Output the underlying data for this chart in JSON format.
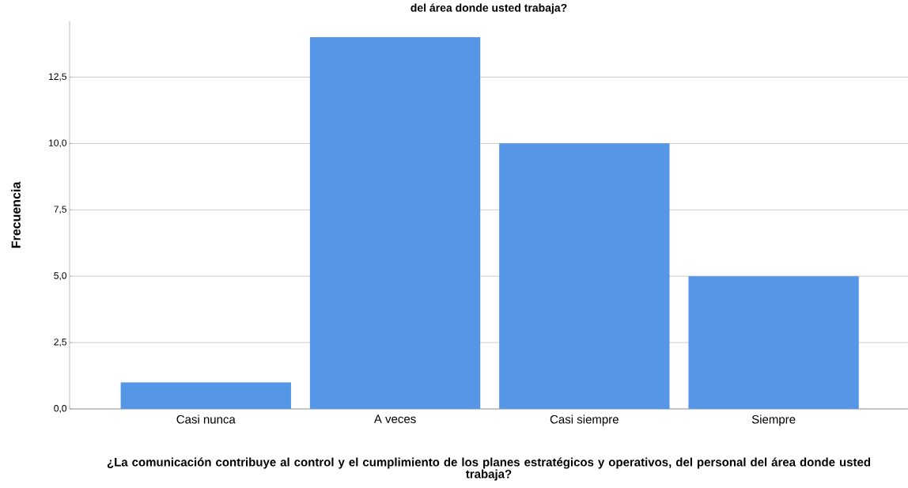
{
  "chart_data": {
    "type": "bar",
    "title": "del área donde usted trabaja?",
    "xlabel": "¿La comunicación contribuye al control y el cumplimiento de los planes estratégicos y operativos, del personal del área donde usted trabaja?",
    "ylabel": "Frecuencia",
    "categories": [
      "Casi nunca",
      "A veces",
      "Casi siempre",
      "Siempre"
    ],
    "values": [
      1,
      14,
      10,
      5
    ],
    "color": "#5596e6",
    "ylim": [
      0,
      14.6
    ],
    "yticks": [
      {
        "value": 0,
        "label": "0,0"
      },
      {
        "value": 2.5,
        "label": "2,5"
      },
      {
        "value": 5,
        "label": "5,0"
      },
      {
        "value": 7.5,
        "label": "7,5"
      },
      {
        "value": 10,
        "label": "10,0"
      },
      {
        "value": 12.5,
        "label": "12,5"
      }
    ],
    "grid": "y"
  }
}
